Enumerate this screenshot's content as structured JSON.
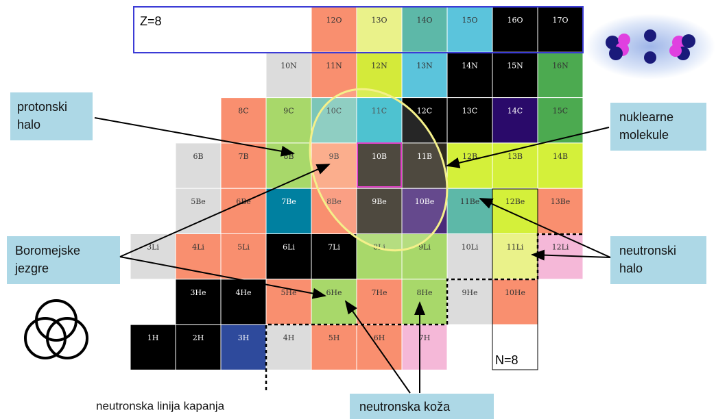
{
  "z_label": "Z=8",
  "n_label": "N=8",
  "rows": [
    {
      "cells": [
        {
          "label": "12O",
          "color": "#f98f6f"
        },
        {
          "label": "13O",
          "color": "#eaf28a"
        },
        {
          "label": "14O",
          "color": "#5db8a8"
        },
        {
          "label": "15O",
          "color": "#5bc4dc"
        },
        {
          "label": "16O",
          "color": "#000000"
        },
        {
          "label": "17O",
          "color": "#000000"
        }
      ]
    },
    {
      "cells": [
        {
          "label": "10N",
          "color": "#dcdcdc"
        },
        {
          "label": "11N",
          "color": "#f98f6f"
        },
        {
          "label": "12N",
          "color": "#d4ea3a"
        },
        {
          "label": "13N",
          "color": "#5bc4dc"
        },
        {
          "label": "14N",
          "color": "#000000"
        },
        {
          "label": "15N",
          "color": "#000000"
        },
        {
          "label": "16N",
          "color": "#4caa50"
        }
      ]
    },
    {
      "cells": [
        {
          "label": "8C",
          "color": "#f98f6f"
        },
        {
          "label": "9C",
          "color": "#a8d86a"
        },
        {
          "label": "10C",
          "color": "#7cc6b8"
        },
        {
          "label": "11C",
          "color": "#2fb8c8"
        },
        {
          "label": "12C",
          "color": "#000000"
        },
        {
          "label": "13C",
          "color": "#000000"
        },
        {
          "label": "14C",
          "color": "#2a0a6a"
        },
        {
          "label": "15C",
          "color": "#4caa50"
        }
      ]
    },
    {
      "cells": [
        {
          "label": "6B",
          "color": "#dcdcdc"
        },
        {
          "label": "7B",
          "color": "#f98f6f"
        },
        {
          "label": "8B",
          "color": "#a8d86a"
        },
        {
          "label": "9B",
          "color": "#fba07a"
        },
        {
          "label": "10B",
          "color": "#2f2a1e"
        },
        {
          "label": "11B",
          "color": "#2f2a1e"
        },
        {
          "label": "12B",
          "color": "#d4f03a"
        },
        {
          "label": "13B",
          "color": "#d4f03a"
        },
        {
          "label": "14B",
          "color": "#d4f03a"
        }
      ]
    },
    {
      "cells": [
        {
          "label": "5Be",
          "color": "#dcdcdc"
        },
        {
          "label": "6Be",
          "color": "#f98f6f"
        },
        {
          "label": "7Be",
          "color": "#0080a0"
        },
        {
          "label": "8Be",
          "color": "#f98f6f"
        },
        {
          "label": "9Be",
          "color": "#2f2a1e"
        },
        {
          "label": "10Be",
          "color": "#4a2a7a"
        },
        {
          "label": "11Be",
          "color": "#5db8a8"
        },
        {
          "label": "12Be",
          "color": "#d4f03a"
        },
        {
          "label": "13Be",
          "color": "#f98f6f"
        }
      ]
    },
    {
      "cells": [
        {
          "label": "3Li",
          "color": "#dcdcdc"
        },
        {
          "label": "4Li",
          "color": "#f98f6f"
        },
        {
          "label": "5Li",
          "color": "#f98f6f"
        },
        {
          "label": "6Li",
          "color": "#000000"
        },
        {
          "label": "7Li",
          "color": "#000000"
        },
        {
          "label": "8Li",
          "color": "#a8d86a"
        },
        {
          "label": "9Li",
          "color": "#a8d86a"
        },
        {
          "label": "10Li",
          "color": "#dcdcdc"
        },
        {
          "label": "11Li",
          "color": "#eaf28a"
        },
        {
          "label": "12Li",
          "color": "#f5b8d8"
        }
      ]
    },
    {
      "cells": [
        {
          "label": "3He",
          "color": "#000000"
        },
        {
          "label": "4He",
          "color": "#000000"
        },
        {
          "label": "5He",
          "color": "#f98f6f"
        },
        {
          "label": "6He",
          "color": "#a8d86a"
        },
        {
          "label": "7He",
          "color": "#f98f6f"
        },
        {
          "label": "8He",
          "color": "#a8d86a"
        },
        {
          "label": "9He",
          "color": "#dcdcdc"
        },
        {
          "label": "10He",
          "color": "#f98f6f"
        }
      ]
    },
    {
      "cells": [
        {
          "label": "1H",
          "color": "#000000"
        },
        {
          "label": "2H",
          "color": "#000000"
        },
        {
          "label": "3H",
          "color": "#2e4a9c"
        },
        {
          "label": "4H",
          "color": "#dcdcdc"
        },
        {
          "label": "5H",
          "color": "#f98f6f"
        },
        {
          "label": "6H",
          "color": "#f98f6f"
        },
        {
          "label": "7H",
          "color": "#f5b8d8"
        }
      ]
    }
  ],
  "annotations": {
    "proton_halo": [
      "protonski",
      "halo"
    ],
    "nuclear_molecules": [
      "nuklearne",
      "molekule"
    ],
    "borromean": [
      "Boromejske",
      "jezgre"
    ],
    "neutron_halo": [
      "neutronski",
      "halo"
    ],
    "neutron_skin": "neutronska koža",
    "drip_line": "neutronska linija kapanja"
  }
}
